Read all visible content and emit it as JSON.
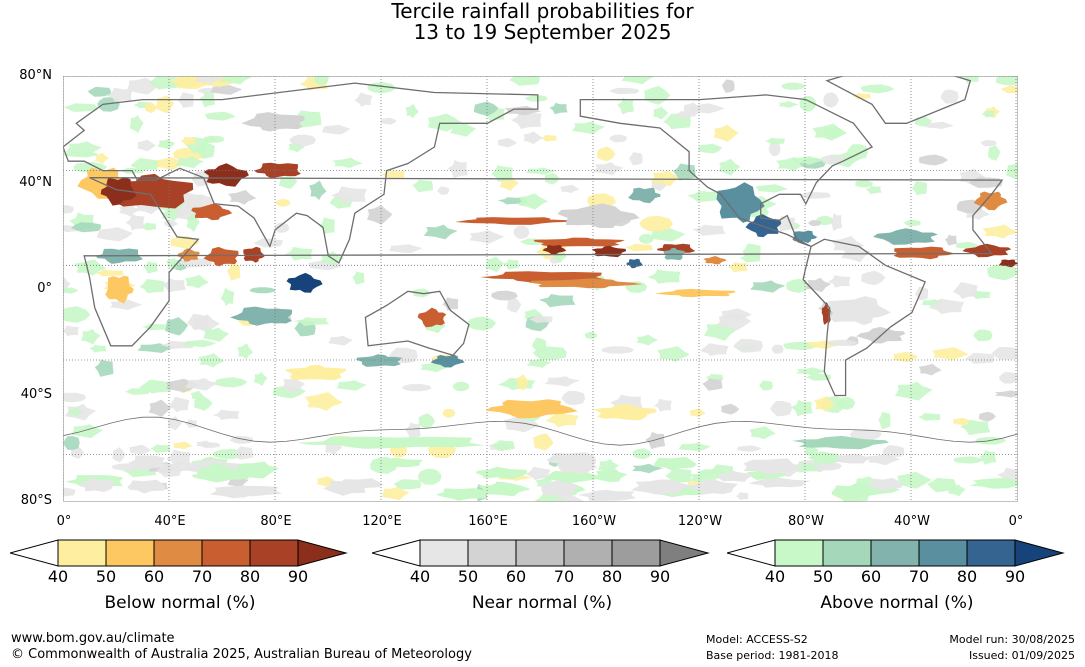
{
  "title": {
    "line1": "Tercile rainfall probabilities for",
    "line2": "13 to 19 September 2025"
  },
  "axes": {
    "lat_labels": [
      "80°N",
      "40°N",
      "0°",
      "40°S",
      "80°S"
    ],
    "lon_labels": [
      "0°",
      "40°E",
      "80°E",
      "120°E",
      "160°E",
      "160°W",
      "120°W",
      "80°W",
      "40°W",
      "0°"
    ]
  },
  "legends": [
    {
      "title": "Below normal (%)",
      "ticks": [
        "40",
        "50",
        "60",
        "70",
        "80",
        "90"
      ],
      "colors": [
        "#ffffff",
        "#fdeea0",
        "#fdc862",
        "#e08b44",
        "#c95f30",
        "#a84125",
        "#8c2e1c"
      ]
    },
    {
      "title": "Near normal (%)",
      "ticks": [
        "40",
        "50",
        "60",
        "70",
        "80",
        "90"
      ],
      "colors": [
        "#ffffff",
        "#e6e6e6",
        "#d3d3d3",
        "#c2c2c2",
        "#b0b0b0",
        "#9d9d9d",
        "#7f7f7f"
      ]
    },
    {
      "title": "Above normal (%)",
      "ticks": [
        "40",
        "50",
        "60",
        "70",
        "80",
        "90"
      ],
      "colors": [
        "#ffffff",
        "#c8f7c8",
        "#a5d8bb",
        "#82b4ad",
        "#5a8fa0",
        "#356490",
        "#16437a"
      ]
    }
  ],
  "footer": {
    "website": "www.bom.gov.au/climate",
    "copyright": "© Commonwealth of Australia 2025, Australian Bureau of Meteorology",
    "model": "Model: ACCESS-S2",
    "base_period": "Base period: 1981-2018",
    "model_run": "Model run: 30/08/2025",
    "issued": "Issued: 01/09/2025"
  },
  "map_colors": {
    "below": [
      "#fdeea0",
      "#fdc862",
      "#e08b44",
      "#c95f30",
      "#a84125",
      "#8c2e1c"
    ],
    "near": [
      "#e6e6e6",
      "#d3d3d3",
      "#c2c2c2"
    ],
    "above": [
      "#c8f7c8",
      "#a5d8bb",
      "#82b4ad",
      "#5a8fa0",
      "#356490",
      "#16437a"
    ],
    "coast": "#6e6e6e"
  }
}
